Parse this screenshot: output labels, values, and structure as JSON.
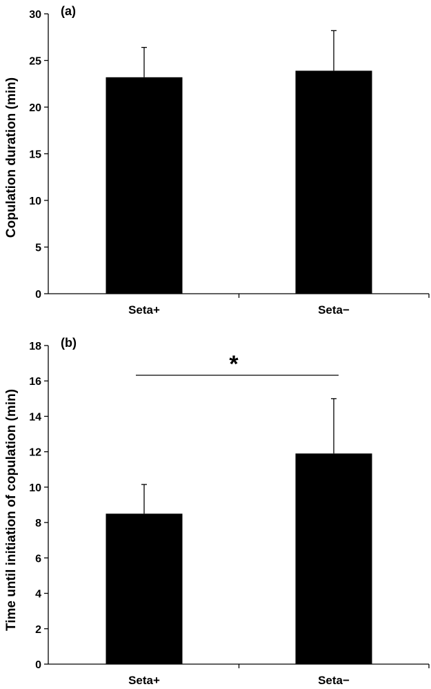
{
  "chart_data": [
    {
      "type": "bar",
      "panel_label": "(a)",
      "categories": [
        "Seta+",
        "Seta−"
      ],
      "values": [
        23.2,
        23.9
      ],
      "error": [
        3.2,
        4.3
      ],
      "ylabel": "Copulation duration (min)",
      "ylim": [
        0,
        30
      ],
      "yticks": [
        0,
        5,
        10,
        15,
        20,
        25,
        30
      ],
      "bar_color": "#000000"
    },
    {
      "type": "bar",
      "panel_label": "(b)",
      "categories": [
        "Seta+",
        "Seta−"
      ],
      "values": [
        8.5,
        11.9
      ],
      "error": [
        1.65,
        3.1
      ],
      "ylabel": "Time until initiation of copulation (min)",
      "ylim": [
        0,
        18
      ],
      "yticks": [
        0,
        2,
        4,
        6,
        8,
        10,
        12,
        14,
        16,
        18
      ],
      "significance": "*",
      "bar_color": "#000000"
    }
  ]
}
